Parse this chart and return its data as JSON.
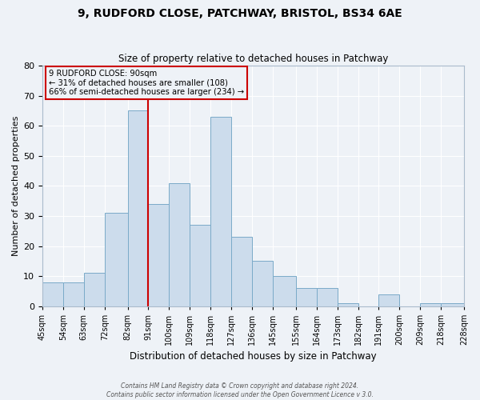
{
  "title1": "9, RUDFORD CLOSE, PATCHWAY, BRISTOL, BS34 6AE",
  "title2": "Size of property relative to detached houses in Patchway",
  "xlabel": "Distribution of detached houses by size in Patchway",
  "ylabel": "Number of detached properties",
  "bar_color": "#ccdcec",
  "bar_edge_color": "#7aaac8",
  "background_color": "#eef2f7",
  "grid_color": "#ffffff",
  "annotation_box_color": "#cc0000",
  "vline_color": "#cc0000",
  "vline_x": 91,
  "bin_edges": [
    45,
    54,
    63,
    72,
    82,
    91,
    100,
    109,
    118,
    127,
    136,
    145,
    155,
    164,
    173,
    182,
    191,
    200,
    209,
    218,
    228
  ],
  "bin_heights": [
    8,
    8,
    11,
    31,
    65,
    34,
    41,
    27,
    63,
    23,
    15,
    10,
    6,
    6,
    1,
    0,
    4,
    0,
    1,
    1
  ],
  "tick_labels": [
    "45sqm",
    "54sqm",
    "63sqm",
    "72sqm",
    "82sqm",
    "91sqm",
    "100sqm",
    "109sqm",
    "118sqm",
    "127sqm",
    "136sqm",
    "145sqm",
    "155sqm",
    "164sqm",
    "173sqm",
    "182sqm",
    "191sqm",
    "200sqm",
    "209sqm",
    "218sqm",
    "228sqm"
  ],
  "ylim": [
    0,
    80
  ],
  "yticks": [
    0,
    10,
    20,
    30,
    40,
    50,
    60,
    70,
    80
  ],
  "annotation_title": "9 RUDFORD CLOSE: 90sqm",
  "annotation_line1": "← 31% of detached houses are smaller (108)",
  "annotation_line2": "66% of semi-detached houses are larger (234) →",
  "footer1": "Contains HM Land Registry data © Crown copyright and database right 2024.",
  "footer2": "Contains public sector information licensed under the Open Government Licence v 3.0."
}
